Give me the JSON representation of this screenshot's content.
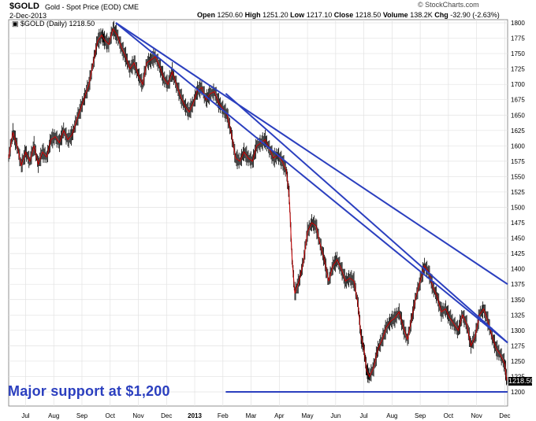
{
  "header": {
    "ticker": "$GOLD",
    "description": "Gold - Spot Price (EOD)",
    "exchange": "CME",
    "date": "2-Dec-2013",
    "watermark": "© StockCharts.com",
    "open_label": "Open",
    "open": "1250.60",
    "high_label": "High",
    "high": "1251.20",
    "low_label": "Low",
    "low": "1217.10",
    "close_label": "Close",
    "close": "1218.50",
    "volume_label": "Volume",
    "volume": "138.2K",
    "chg_label": "Chg",
    "chg": "-32.90 (-2.63%)",
    "legend": "$GOLD (Daily) 1218.50",
    "legend_icon": "▣"
  },
  "annotation": "Major support at $1,200",
  "last_price_tag": "1218.50",
  "colors": {
    "price": "#cc0000",
    "bar": "#000000",
    "trendline": "#2b3fbf",
    "grid": "#e2e2e2"
  },
  "chart_data": {
    "type": "line",
    "ylim": [
      1200,
      1800
    ],
    "y_ticks": [
      1200,
      1225,
      1250,
      1275,
      1300,
      1325,
      1350,
      1375,
      1400,
      1425,
      1450,
      1475,
      1500,
      1525,
      1550,
      1575,
      1600,
      1625,
      1650,
      1675,
      1700,
      1725,
      1750,
      1775,
      1800
    ],
    "x_ticks": [
      "Jul",
      "Aug",
      "Sep",
      "Oct",
      "Nov",
      "Dec",
      "2013",
      "Feb",
      "Mar",
      "Apr",
      "May",
      "Jun",
      "Jul",
      "Aug",
      "Sep",
      "Oct",
      "Nov",
      "Dec"
    ],
    "x_tick_months": [
      0,
      1,
      2,
      3,
      4,
      5,
      6,
      7,
      8,
      9,
      10,
      11,
      12,
      13,
      14,
      15,
      16,
      17
    ],
    "x_range_months": [
      -0.6,
      17.1
    ],
    "grid": true,
    "series": [
      {
        "x": [
          -0.6,
          -0.45,
          -0.3,
          -0.15,
          0.0,
          0.15,
          0.3,
          0.45,
          0.6,
          0.75,
          0.9,
          1.05,
          1.2,
          1.35,
          1.5,
          1.65,
          1.8,
          1.95,
          2.1,
          2.25,
          2.4,
          2.55,
          2.7,
          2.8,
          2.95,
          3.1,
          3.25,
          3.4,
          3.55,
          3.7,
          3.85,
          4.0,
          4.15,
          4.3,
          4.45,
          4.6,
          4.75,
          4.9,
          5.05,
          5.2,
          5.35,
          5.5,
          5.65,
          5.8,
          5.95,
          6.1,
          6.25,
          6.4,
          6.55,
          6.7,
          6.85,
          7.0,
          7.15,
          7.3,
          7.45,
          7.6,
          7.75,
          7.9,
          8.05,
          8.2,
          8.35,
          8.5,
          8.65,
          8.8,
          8.95,
          9.1,
          9.25,
          9.35,
          9.45,
          9.55,
          9.7,
          9.85,
          10.0,
          10.15,
          10.3,
          10.45,
          10.6,
          10.75,
          10.9,
          11.05,
          11.2,
          11.35,
          11.5,
          11.65,
          11.8,
          11.9,
          12.0,
          12.1,
          12.2,
          12.35,
          12.5,
          12.65,
          12.8,
          12.95,
          13.1,
          13.25,
          13.4,
          13.55,
          13.7,
          13.85,
          14.0,
          14.15,
          14.3,
          14.45,
          14.6,
          14.75,
          14.9,
          15.05,
          15.2,
          15.35,
          15.5,
          15.65,
          15.8,
          15.95,
          16.1,
          16.25,
          16.4,
          16.55,
          16.7,
          16.85,
          17.0,
          17.07
        ],
        "values": [
          1580,
          1622,
          1600,
          1568,
          1590,
          1575,
          1600,
          1570,
          1590,
          1582,
          1610,
          1615,
          1605,
          1625,
          1610,
          1618,
          1640,
          1660,
          1680,
          1700,
          1735,
          1770,
          1780,
          1772,
          1765,
          1790,
          1780,
          1760,
          1745,
          1725,
          1735,
          1715,
          1700,
          1735,
          1740,
          1745,
          1730,
          1710,
          1700,
          1720,
          1700,
          1680,
          1665,
          1655,
          1670,
          1690,
          1695,
          1675,
          1685,
          1688,
          1670,
          1660,
          1650,
          1620,
          1580,
          1575,
          1590,
          1580,
          1575,
          1600,
          1605,
          1610,
          1595,
          1580,
          1585,
          1575,
          1560,
          1520,
          1420,
          1360,
          1380,
          1410,
          1460,
          1475,
          1470,
          1440,
          1415,
          1380,
          1405,
          1415,
          1400,
          1380,
          1385,
          1380,
          1340,
          1290,
          1270,
          1235,
          1225,
          1240,
          1270,
          1285,
          1305,
          1315,
          1320,
          1330,
          1305,
          1285,
          1320,
          1355,
          1380,
          1405,
          1395,
          1370,
          1355,
          1330,
          1335,
          1320,
          1310,
          1300,
          1325,
          1310,
          1275,
          1290,
          1325,
          1335,
          1315,
          1290,
          1270,
          1260,
          1245,
          1218.5
        ]
      }
    ],
    "trendlines": [
      {
        "from": [
          3.2,
          1800
        ],
        "to": [
          17.1,
          1375
        ]
      },
      {
        "from": [
          3.2,
          1800
        ],
        "to": [
          17.1,
          1280
        ]
      },
      {
        "from": [
          7.1,
          1685
        ],
        "to": [
          17.1,
          1280
        ]
      },
      {
        "from": [
          7.1,
          1200
        ],
        "to": [
          17.1,
          1200
        ]
      }
    ]
  }
}
